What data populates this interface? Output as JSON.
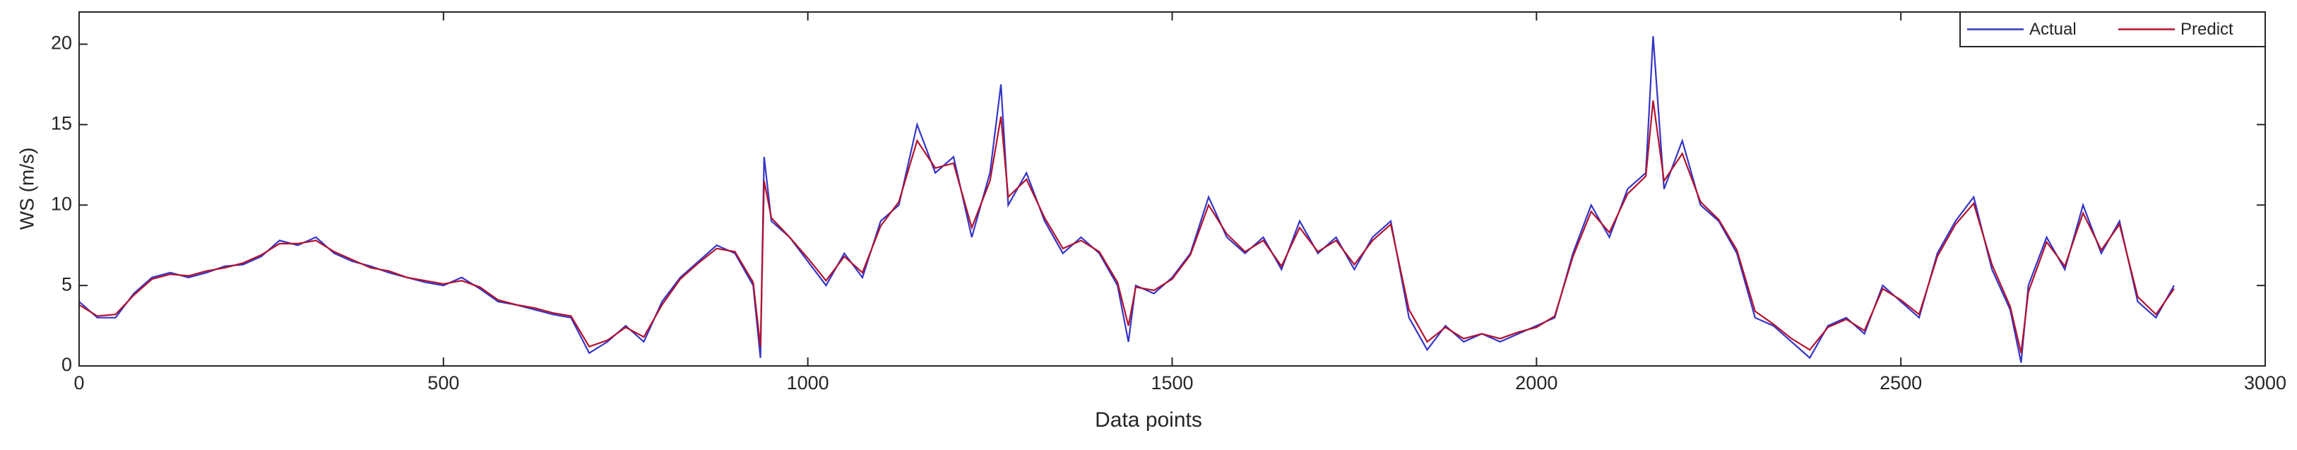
{
  "chart_data": {
    "type": "line",
    "xlabel": "Data points",
    "ylabel": "WS (m/s)",
    "x": [
      0,
      25,
      50,
      75,
      100,
      125,
      150,
      175,
      200,
      225,
      250,
      275,
      300,
      325,
      350,
      375,
      400,
      425,
      450,
      475,
      500,
      525,
      550,
      575,
      600,
      625,
      650,
      675,
      700,
      725,
      750,
      775,
      800,
      825,
      850,
      875,
      900,
      925,
      935,
      940,
      950,
      975,
      1000,
      1025,
      1050,
      1075,
      1100,
      1125,
      1150,
      1175,
      1200,
      1225,
      1250,
      1265,
      1275,
      1300,
      1325,
      1350,
      1375,
      1400,
      1425,
      1440,
      1450,
      1475,
      1500,
      1525,
      1550,
      1575,
      1600,
      1625,
      1650,
      1675,
      1700,
      1725,
      1750,
      1775,
      1800,
      1825,
      1850,
      1875,
      1900,
      1925,
      1950,
      1975,
      2000,
      2025,
      2050,
      2075,
      2100,
      2125,
      2150,
      2160,
      2175,
      2200,
      2225,
      2250,
      2275,
      2300,
      2325,
      2350,
      2375,
      2400,
      2425,
      2450,
      2475,
      2500,
      2525,
      2550,
      2575,
      2600,
      2625,
      2650,
      2665,
      2675,
      2700,
      2725,
      2750,
      2775,
      2800,
      2825,
      2850,
      2875
    ],
    "series": [
      {
        "name": "Actual",
        "color": "#3535c8",
        "values": [
          4,
          3,
          3,
          4.5,
          5.5,
          5.8,
          5.5,
          5.8,
          6.2,
          6.3,
          6.8,
          7.8,
          7.5,
          8,
          7,
          6.5,
          6.2,
          5.8,
          5.5,
          5.2,
          5,
          5.5,
          4.8,
          4,
          3.8,
          3.5,
          3.2,
          3,
          0.8,
          1.5,
          2.5,
          1.5,
          4,
          5.5,
          6.5,
          7.5,
          7,
          5,
          0.5,
          13,
          9,
          8,
          6.5,
          5,
          7,
          5.5,
          9,
          10,
          15,
          12,
          13,
          8,
          12,
          17.5,
          10,
          12,
          9,
          7,
          8,
          7,
          5,
          1.5,
          5,
          4.5,
          5.5,
          7,
          10.5,
          8,
          7,
          8,
          6,
          9,
          7,
          8,
          6,
          8,
          9,
          3,
          1,
          2.5,
          1.5,
          2,
          1.5,
          2,
          2.5,
          3,
          7,
          10,
          8,
          11,
          12,
          20.5,
          11,
          14,
          10,
          9,
          7,
          3,
          2.5,
          1.5,
          0.5,
          2.5,
          3,
          2,
          5,
          4,
          3,
          7,
          9,
          10.5,
          6,
          3.5,
          0.2,
          5,
          8,
          6,
          10,
          7,
          9,
          4,
          3,
          5
        ]
      },
      {
        "name": "Predict",
        "color": "#b3122e",
        "values": [
          3.8,
          3.1,
          3.2,
          4.4,
          5.4,
          5.7,
          5.6,
          5.9,
          6.1,
          6.4,
          6.9,
          7.6,
          7.6,
          7.8,
          7.1,
          6.6,
          6.1,
          5.9,
          5.5,
          5.3,
          5.1,
          5.3,
          4.9,
          4.1,
          3.8,
          3.6,
          3.3,
          3.1,
          1.2,
          1.6,
          2.4,
          1.8,
          3.8,
          5.4,
          6.4,
          7.3,
          7.1,
          5.2,
          1.2,
          11.5,
          9.2,
          8,
          6.7,
          5.3,
          6.8,
          5.8,
          8.7,
          10.2,
          14,
          12.3,
          12.6,
          8.6,
          11.5,
          15.5,
          10.5,
          11.6,
          9.2,
          7.3,
          7.8,
          7.1,
          5.2,
          2.5,
          4.9,
          4.7,
          5.4,
          6.9,
          10,
          8.2,
          7.1,
          7.8,
          6.2,
          8.6,
          7.1,
          7.8,
          6.3,
          7.8,
          8.8,
          3.5,
          1.5,
          2.4,
          1.7,
          2,
          1.7,
          2.1,
          2.4,
          3.1,
          6.8,
          9.6,
          8.3,
          10.7,
          11.8,
          16.5,
          11.5,
          13.2,
          10.2,
          9.1,
          7.2,
          3.4,
          2.6,
          1.7,
          1,
          2.4,
          2.9,
          2.2,
          4.8,
          4.1,
          3.2,
          6.8,
          8.8,
          10.1,
          6.3,
          3.7,
          0.8,
          4.6,
          7.7,
          6.2,
          9.5,
          7.2,
          8.8,
          4.3,
          3.2,
          4.8
        ]
      }
    ],
    "xlim": [
      0,
      3000
    ],
    "xticks": [
      0,
      500,
      1000,
      1500,
      2000,
      2500,
      3000
    ],
    "ylim": [
      0,
      22
    ],
    "yticks": [
      0,
      5,
      10,
      15,
      20
    ],
    "legend": "upper right"
  }
}
